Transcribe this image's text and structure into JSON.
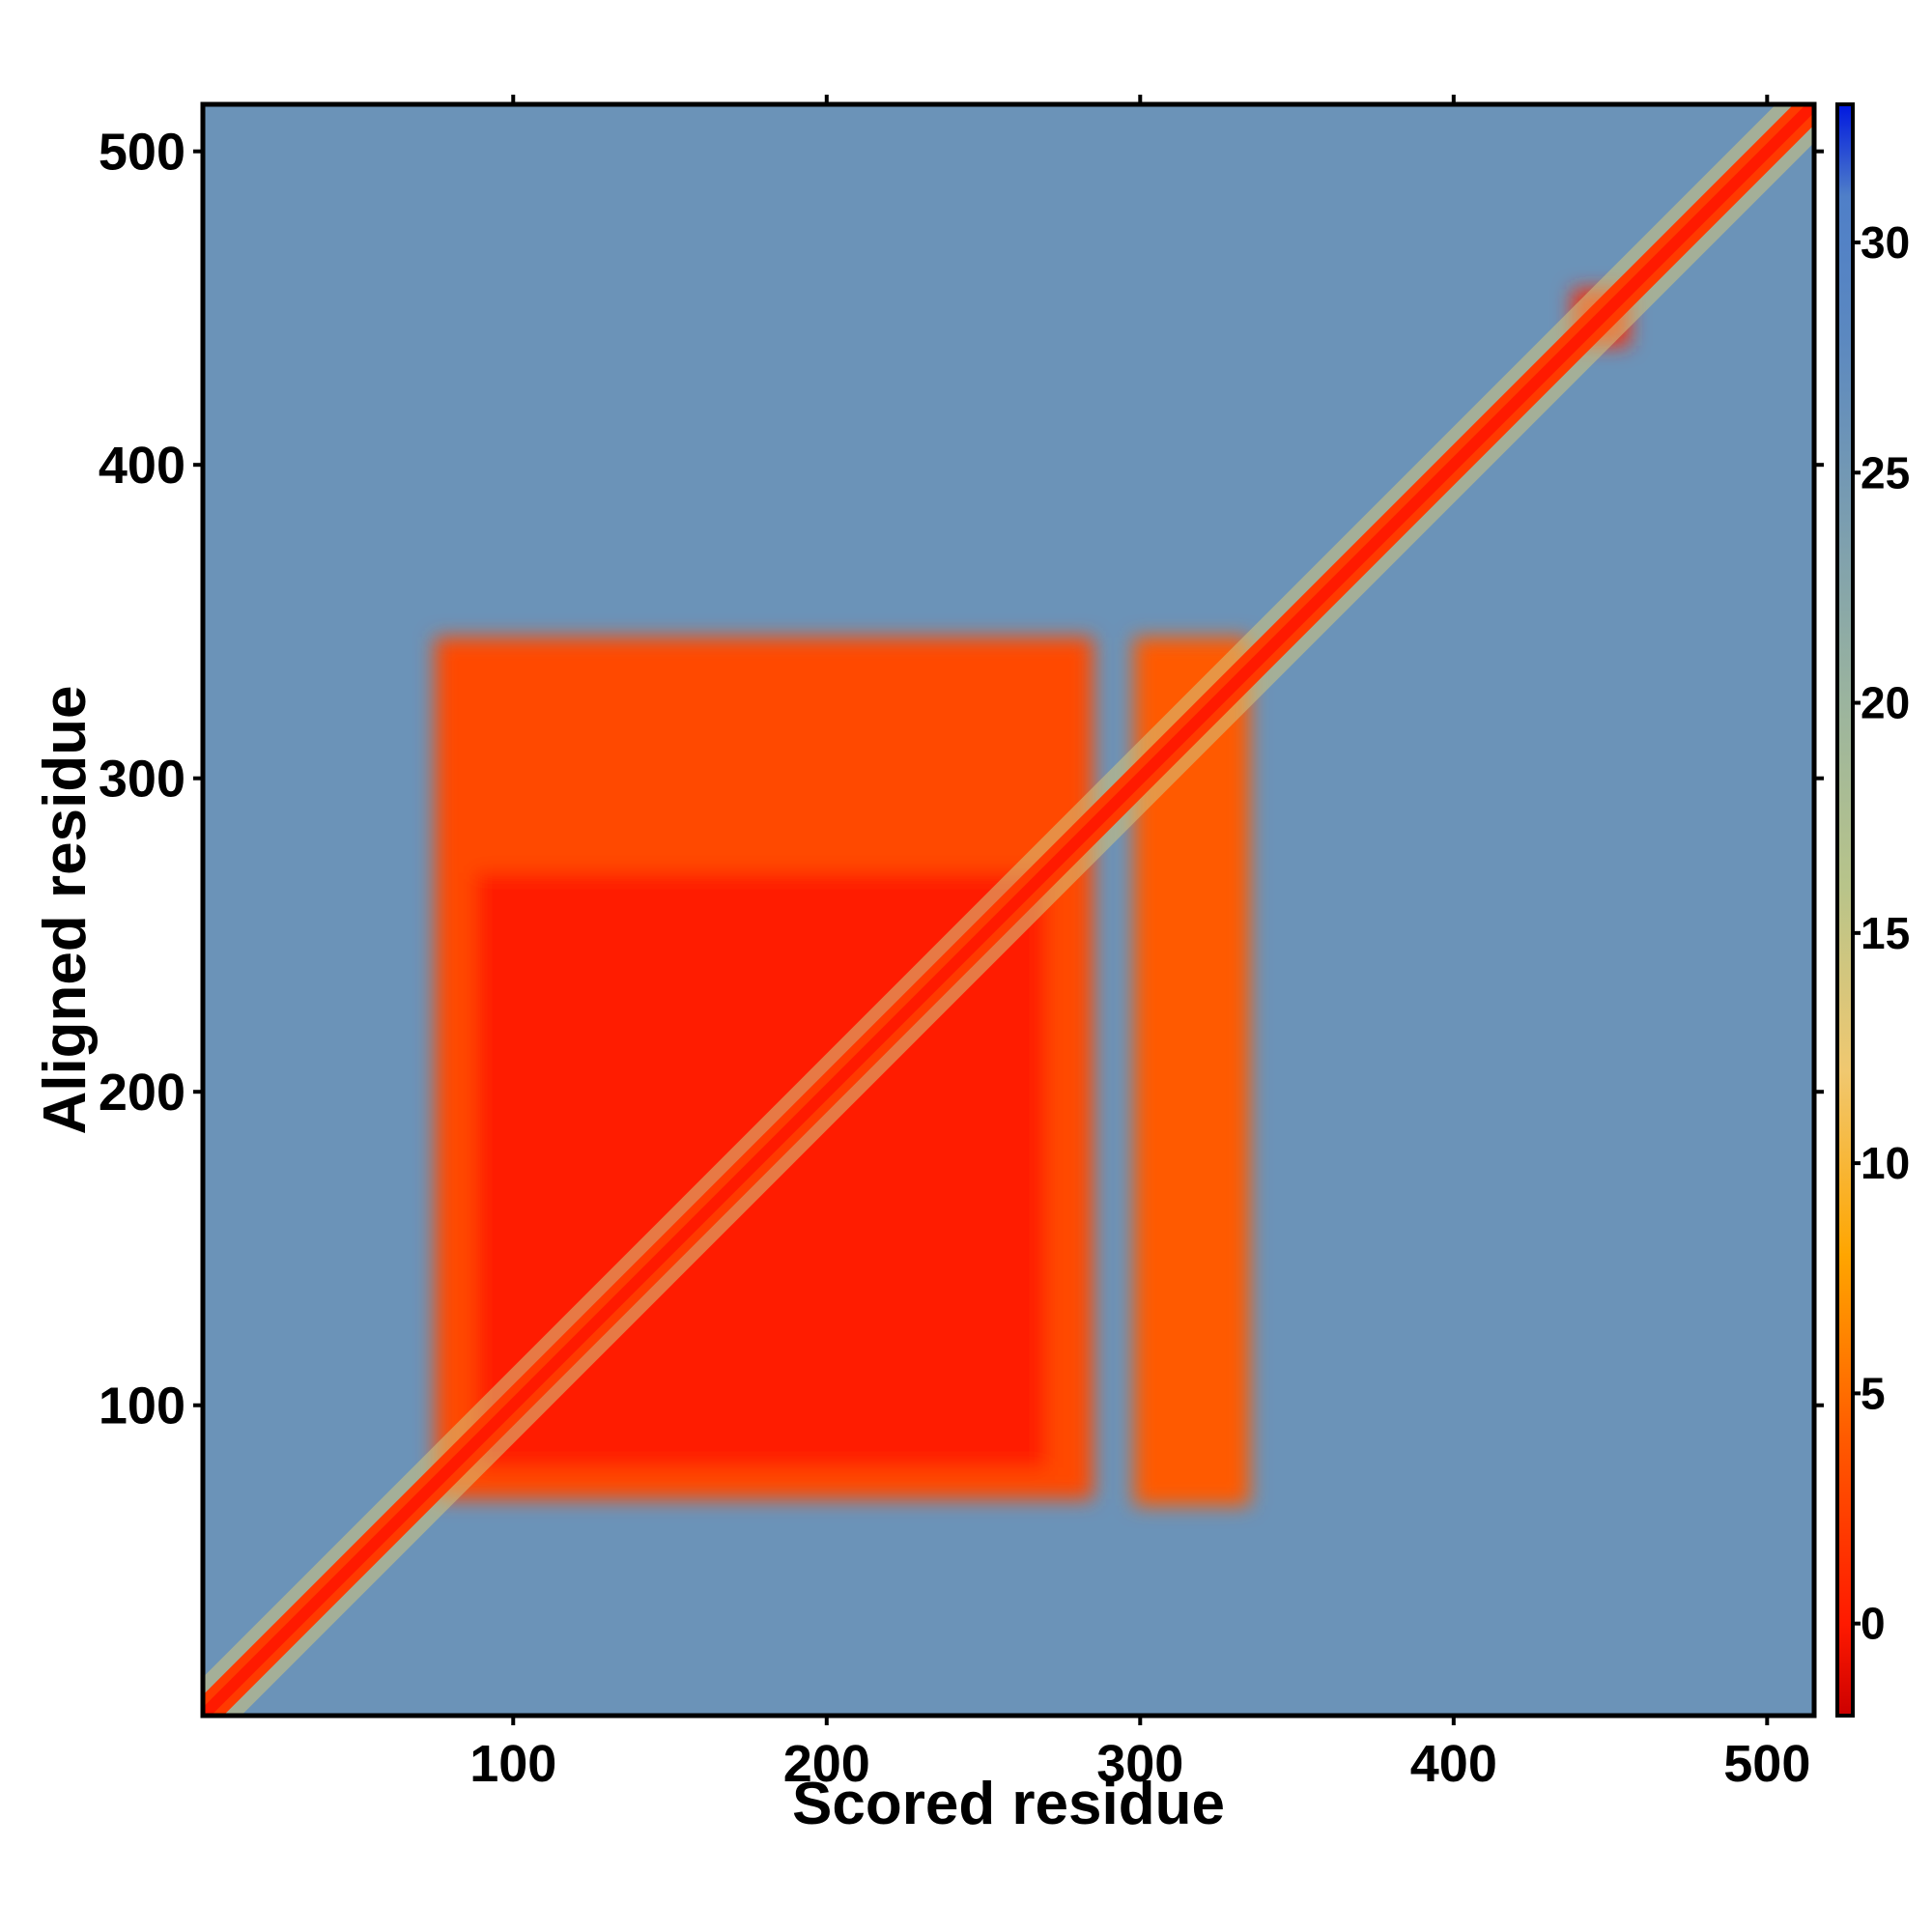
{
  "chart_data": {
    "type": "heatmap",
    "title": "",
    "xlabel": "Scored residue",
    "ylabel": "Aligned residue",
    "xlim": [
      1,
      515
    ],
    "ylim": [
      1,
      515
    ],
    "x_ticks": [
      100,
      200,
      300,
      400,
      500
    ],
    "y_ticks": [
      100,
      200,
      300,
      400,
      500
    ],
    "colorbar": {
      "range": [
        -2,
        33
      ],
      "ticks": [
        0,
        5,
        10,
        15,
        20,
        25,
        30
      ],
      "stops": [
        {
          "value": -2,
          "color": "#cc0000"
        },
        {
          "value": 0,
          "color": "#ff1a00"
        },
        {
          "value": 4,
          "color": "#ff5a00"
        },
        {
          "value": 8,
          "color": "#ffa500"
        },
        {
          "value": 12,
          "color": "#f0c870"
        },
        {
          "value": 16,
          "color": "#b8c48a"
        },
        {
          "value": 20,
          "color": "#9bb49e"
        },
        {
          "value": 24,
          "color": "#7a9db0"
        },
        {
          "value": 28,
          "color": "#5b88c0"
        },
        {
          "value": 31,
          "color": "#4f7fc8"
        },
        {
          "value": 33,
          "color": "#0018e0"
        }
      ]
    },
    "background_value": 26,
    "diagonal_value": 0,
    "regions": [
      {
        "name": "domain-block",
        "x": [
          75,
          285
        ],
        "y": [
          70,
          345
        ],
        "value": 3
      },
      {
        "name": "domain-block",
        "x": [
          298,
          335
        ],
        "y": [
          68,
          345
        ],
        "value": 4
      },
      {
        "name": "inner-core",
        "x": [
          88,
          270
        ],
        "y": [
          80,
          270
        ],
        "value": 0
      },
      {
        "name": "diagonal-hotspot",
        "x": [
          438,
          456
        ],
        "y": [
          438,
          456
        ],
        "value": 1
      }
    ]
  }
}
